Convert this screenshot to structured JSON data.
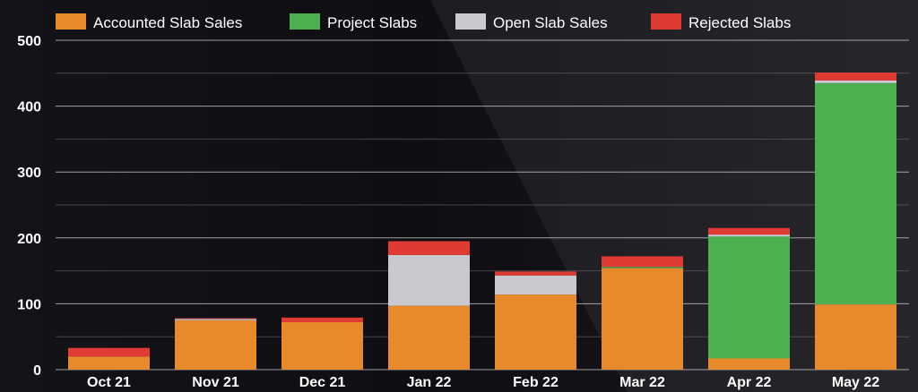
{
  "chart_data": {
    "type": "bar",
    "stacked": true,
    "title": "",
    "xlabel": "",
    "ylabel": "",
    "categories": [
      "Oct 21",
      "Nov 21",
      "Dec 21",
      "Jan 22",
      "Feb 22",
      "Mar 22",
      "Apr 22",
      "May 22"
    ],
    "ylim": [
      0,
      500
    ],
    "yticks": [
      0,
      100,
      200,
      300,
      400,
      500
    ],
    "grid": true,
    "legend_position": "top",
    "series": [
      {
        "name": "Accounted Slab Sales",
        "color": "#e8892c",
        "values": [
          20,
          75,
          72,
          97,
          114,
          154,
          17,
          99
        ]
      },
      {
        "name": "Project Slabs",
        "color": "#4caf50",
        "values": [
          0,
          0,
          0,
          0,
          0,
          2,
          185,
          336
        ]
      },
      {
        "name": "Open Slab Sales",
        "color": "#c9c9cf",
        "values": [
          0,
          2,
          0,
          77,
          29,
          0,
          3,
          4
        ]
      },
      {
        "name": "Rejected Slabs",
        "color": "#e03a35",
        "values": [
          13,
          1,
          7,
          21,
          6,
          16,
          10,
          12
        ]
      }
    ]
  }
}
